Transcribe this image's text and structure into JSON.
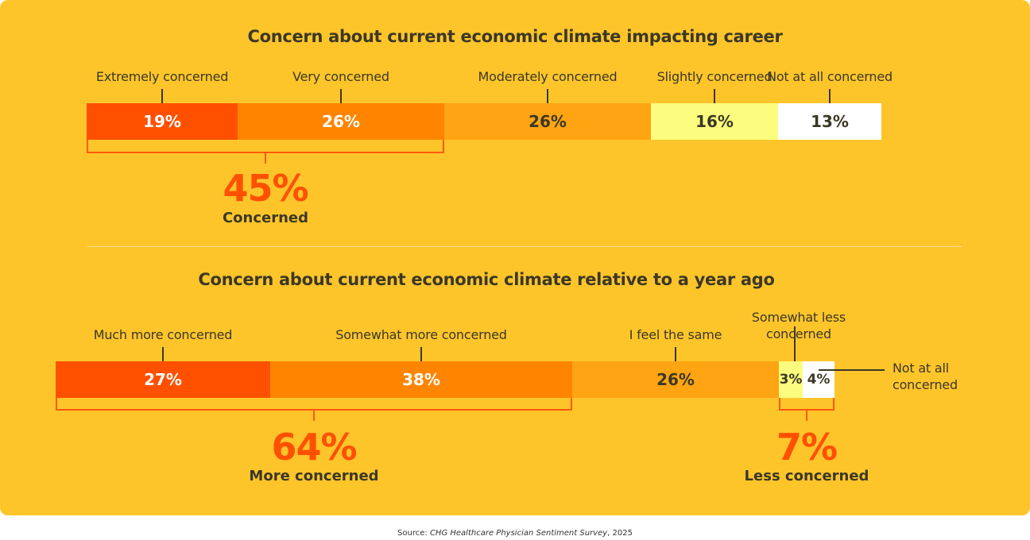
{
  "colors": {
    "background": "#FEC52B",
    "extremely": "#FF5000",
    "very": "#FF8500",
    "moderate": "#FFA412",
    "slight": "#FCFC7E",
    "none": "#FFFFFF",
    "accent": "#FF5000"
  },
  "chart_data": [
    {
      "type": "bar",
      "orientation": "horizontal-stacked",
      "title": "Concern about current economic climate impacting career",
      "categories": [
        "Extremely concerned",
        "Very concerned",
        "Moderately concerned",
        "Slightly concerned",
        "Not at all concerned"
      ],
      "values": [
        19,
        26,
        26,
        16,
        13
      ],
      "value_labels": [
        "19%",
        "26%",
        "26%",
        "16%",
        "13%"
      ],
      "colors": [
        "#FF5000",
        "#FF8500",
        "#FFA412",
        "#FCFC7E",
        "#FFFFFF"
      ],
      "text_colors": [
        "#FFFFFF",
        "#FFFFFF",
        "#3b3826",
        "#3b3826",
        "#3b3826"
      ],
      "groups": [
        {
          "from": 0,
          "to": 1,
          "value": "45%",
          "label": "Concerned"
        }
      ]
    },
    {
      "type": "bar",
      "orientation": "horizontal-stacked",
      "title": "Concern about current economic climate relative to a year ago",
      "categories": [
        "Much more concerned",
        "Somewhat more concerned",
        "I feel the same",
        "Somewhat less concerned",
        "Not at all concerned"
      ],
      "category_lines": [
        [
          "Much more concerned"
        ],
        [
          "Somewhat more concerned"
        ],
        [
          "I feel the same"
        ],
        [
          "Somewhat less",
          "concerned"
        ],
        [
          "Not at all",
          "concerned"
        ]
      ],
      "values": [
        27,
        38,
        26,
        3,
        4
      ],
      "value_labels": [
        "27%",
        "38%",
        "26%",
        "3%",
        "4%"
      ],
      "colors": [
        "#FF5000",
        "#FF8500",
        "#FFA412",
        "#FCFC7E",
        "#FFFFFF"
      ],
      "text_colors": [
        "#FFFFFF",
        "#FFFFFF",
        "#3b3826",
        "#3b3826",
        "#3b3826"
      ],
      "groups": [
        {
          "from": 0,
          "to": 1,
          "value": "64%",
          "label": "More concerned"
        },
        {
          "from": 3,
          "to": 4,
          "value": "7%",
          "label": "Less concerned"
        }
      ]
    }
  ],
  "source": {
    "prefix": "Source: ",
    "text": "CHG Healthcare Physician Sentiment Survey",
    "suffix": ", 2025"
  }
}
